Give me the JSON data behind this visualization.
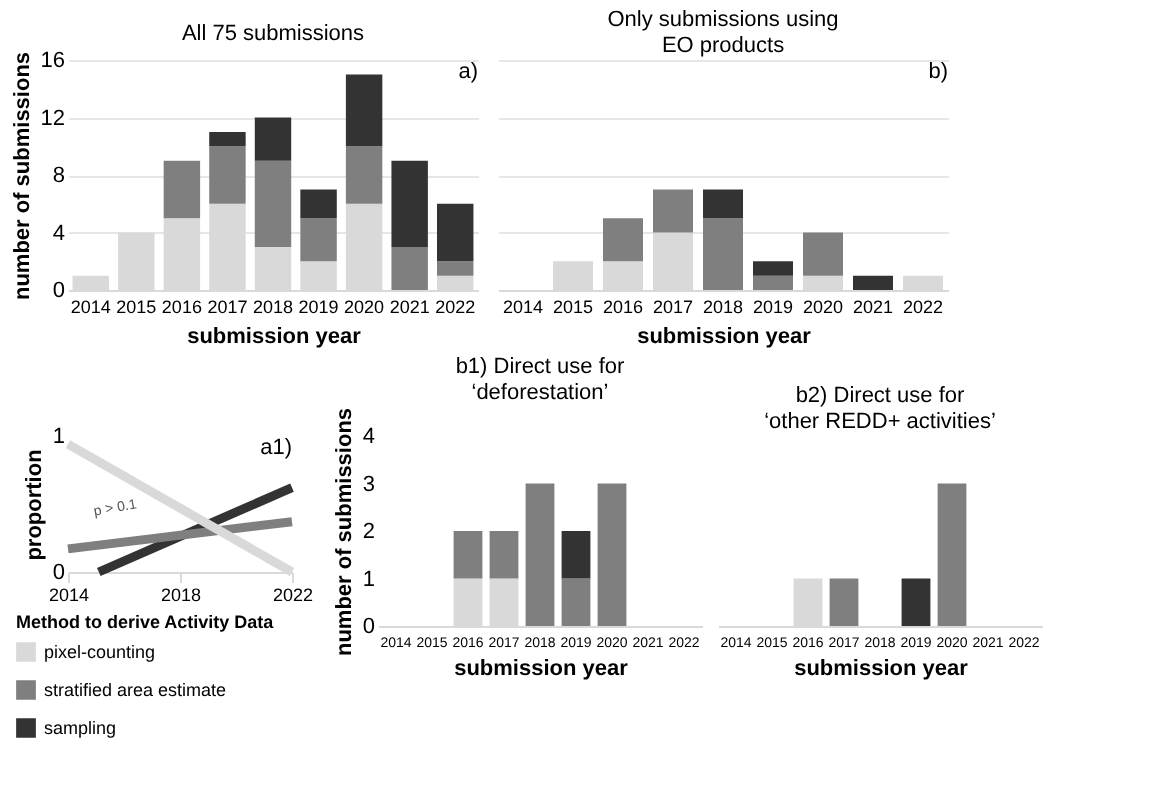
{
  "chart_data": [
    {
      "type": "bar",
      "title": "All 75 submissions",
      "xlabel": "submission year",
      "ylabel": "number of submissions",
      "annotations": [
        "a)"
      ],
      "legend": "bottom left",
      "legend_title": "Method to derive Activity Data",
      "categories": [
        "2014",
        "2015",
        "2016",
        "2017",
        "2018",
        "2019",
        "2020",
        "2021",
        "2022"
      ],
      "stacked": true,
      "ylim": [
        0,
        16
      ],
      "yticks": [
        0,
        4,
        8,
        12,
        16
      ],
      "grid": "y",
      "series": [
        {
          "name": "pixel-counting",
          "color": "#d9d9d9",
          "values": [
            1,
            4,
            5,
            6,
            3,
            2,
            6,
            0,
            1
          ]
        },
        {
          "name": "stratified area estimate",
          "color": "#7f7f7f",
          "values": [
            0,
            0,
            4,
            4,
            6,
            3,
            4,
            3,
            1
          ]
        },
        {
          "name": "sampling",
          "color": "#333333",
          "values": [
            0,
            0,
            0,
            1,
            3,
            2,
            5,
            6,
            4
          ]
        }
      ]
    },
    {
      "type": "bar",
      "title": "Only submissions using\nEO products",
      "xlabel": "submission year",
      "annotations": [
        "b)"
      ],
      "legend": "bottom left",
      "categories": [
        "2014",
        "2015",
        "2016",
        "2017",
        "2018",
        "2019",
        "2020",
        "2021",
        "2022"
      ],
      "stacked": true,
      "ylim": [
        0,
        16
      ],
      "yticks": [
        0,
        4,
        8,
        12,
        16
      ],
      "grid": "y",
      "tick_labels": "x",
      "series": [
        {
          "name": "pixel-counting",
          "color": "#d9d9d9",
          "values": [
            0,
            2,
            2,
            4,
            0,
            0,
            1,
            0,
            1
          ]
        },
        {
          "name": "stratified area estimate",
          "color": "#7f7f7f",
          "values": [
            0,
            0,
            3,
            3,
            5,
            1,
            3,
            0,
            0
          ]
        },
        {
          "name": "sampling",
          "color": "#333333",
          "values": [
            0,
            0,
            0,
            0,
            2,
            1,
            0,
            1,
            0
          ]
        }
      ]
    },
    {
      "type": "line",
      "ylabel": "proportion",
      "annotations": [
        "a1)",
        "p > 0.1"
      ],
      "xlim": [
        2014,
        2022
      ],
      "xticks": [
        2014,
        2018,
        2022
      ],
      "ylim": [
        0,
        1
      ],
      "yticks": [
        0,
        1
      ],
      "legend": "bottom left",
      "marker": "none",
      "line_style": "solid",
      "series": [
        {
          "name": "sampling",
          "color": "#333333",
          "x": [
            2015.1,
            2022
          ],
          "values": [
            0,
            0.62
          ]
        },
        {
          "name": "stratified area estimate",
          "color": "#7f7f7f",
          "x": [
            2014,
            2022
          ],
          "values": [
            0.17,
            0.37
          ]
        },
        {
          "name": "pixel-counting",
          "color": "#d9d9d9",
          "x": [
            2014,
            2022
          ],
          "values": [
            0.94,
            0
          ]
        }
      ]
    },
    {
      "type": "bar",
      "title": "b1)  Direct use for\n‘deforestation’",
      "legend": "bottom left",
      "xlabel": "submission year",
      "ylabel": "number of submissions",
      "categories": [
        "2014",
        "2015",
        "2016",
        "2017",
        "2018",
        "2019",
        "2020",
        "2021",
        "2022"
      ],
      "stacked": true,
      "ylim": [
        0,
        4
      ],
      "yticks": [
        0,
        1,
        2,
        3,
        4
      ],
      "series": [
        {
          "name": "pixel-counting",
          "color": "#d9d9d9",
          "values": [
            0,
            0,
            1,
            1,
            0,
            0,
            0,
            0,
            0
          ]
        },
        {
          "name": "stratified area estimate",
          "color": "#7f7f7f",
          "values": [
            0,
            0,
            1,
            1,
            3,
            1,
            3,
            0,
            0
          ]
        },
        {
          "name": "sampling",
          "color": "#333333",
          "values": [
            0,
            0,
            0,
            0,
            0,
            1,
            0,
            0,
            0
          ]
        }
      ]
    },
    {
      "type": "bar",
      "title": "b2)  Direct use for\n‘other REDD+ activities’",
      "legend": "bottom left",
      "xlabel": "submission year",
      "categories": [
        "2014",
        "2015",
        "2016",
        "2017",
        "2018",
        "2019",
        "2020",
        "2021",
        "2022"
      ],
      "stacked": true,
      "ylim": [
        0,
        4
      ],
      "yticks": [
        0,
        1,
        2,
        3,
        4
      ],
      "tick_labels": "x",
      "series": [
        {
          "name": "pixel-counting",
          "color": "#d9d9d9",
          "values": [
            0,
            0,
            1,
            0,
            0,
            0,
            0,
            0,
            0
          ]
        },
        {
          "name": "stratified area estimate",
          "color": "#7f7f7f",
          "values": [
            0,
            0,
            0,
            1,
            0,
            0,
            3,
            0,
            0
          ]
        },
        {
          "name": "sampling",
          "color": "#333333",
          "values": [
            0,
            0,
            0,
            0,
            0,
            1,
            0,
            0,
            0
          ]
        }
      ]
    }
  ]
}
